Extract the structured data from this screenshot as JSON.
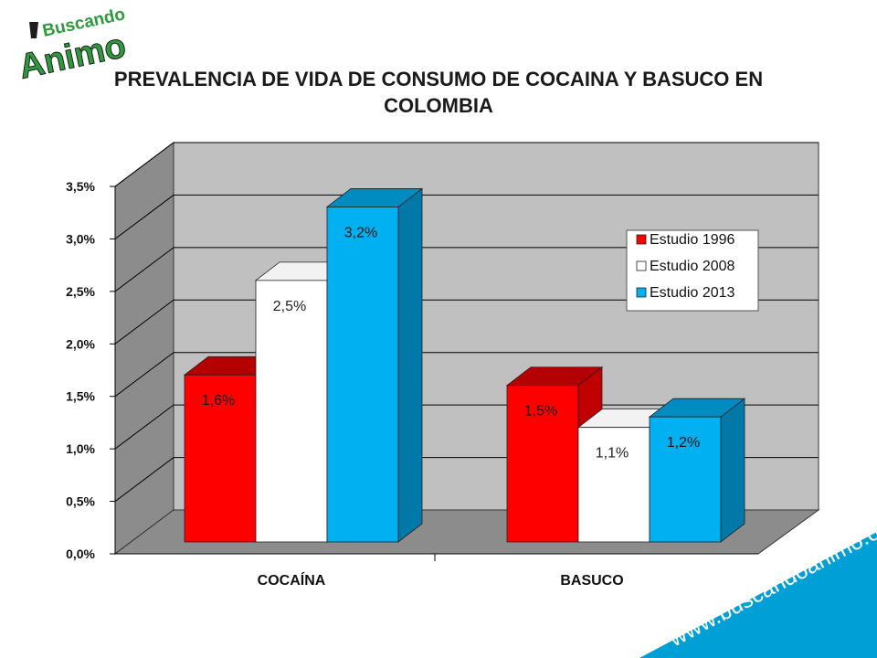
{
  "logo": {
    "line1": "Buscando",
    "line2": "Animo",
    "text_color": "#2e9a3b",
    "accent": "#1e1e1e"
  },
  "title": "PREVALENCIA DE VIDA DE CONSUMO DE COCAINA Y BASUCO EN COLOMBIA",
  "url": "www.buscandoanimo.org",
  "chart_data": {
    "type": "bar",
    "title": "PREVALENCIA DE VIDA DE CONSUMO DE COCAINA Y BASUCO EN COLOMBIA",
    "categories": [
      "COCAÍNA",
      "BASUCO"
    ],
    "series": [
      {
        "name": "Estudio 1996",
        "values": [
          1.6,
          1.5
        ],
        "labels": [
          "1,6%",
          "1,5%"
        ],
        "color": "#ff0000"
      },
      {
        "name": "Estudio 2008",
        "values": [
          2.5,
          1.1
        ],
        "labels": [
          "2,5%",
          "1,1%"
        ],
        "color": "#ffffff"
      },
      {
        "name": "Estudio 2013",
        "values": [
          3.2,
          1.2
        ],
        "labels": [
          "3,2%",
          "1,2%"
        ],
        "color": "#00b0f0"
      }
    ],
    "yticks": [
      "0,0%",
      "0,5%",
      "1,0%",
      "1,5%",
      "2,0%",
      "2,5%",
      "3,0%",
      "3,5%"
    ],
    "ylim": [
      0,
      3.5
    ],
    "grid": true,
    "legend_position": "right",
    "three_d": true,
    "colors": {
      "wall": "#c0c0c0",
      "side_wall": "#8c8c8c",
      "floor": "#8c8c8c",
      "band": "#00a0d6"
    }
  }
}
